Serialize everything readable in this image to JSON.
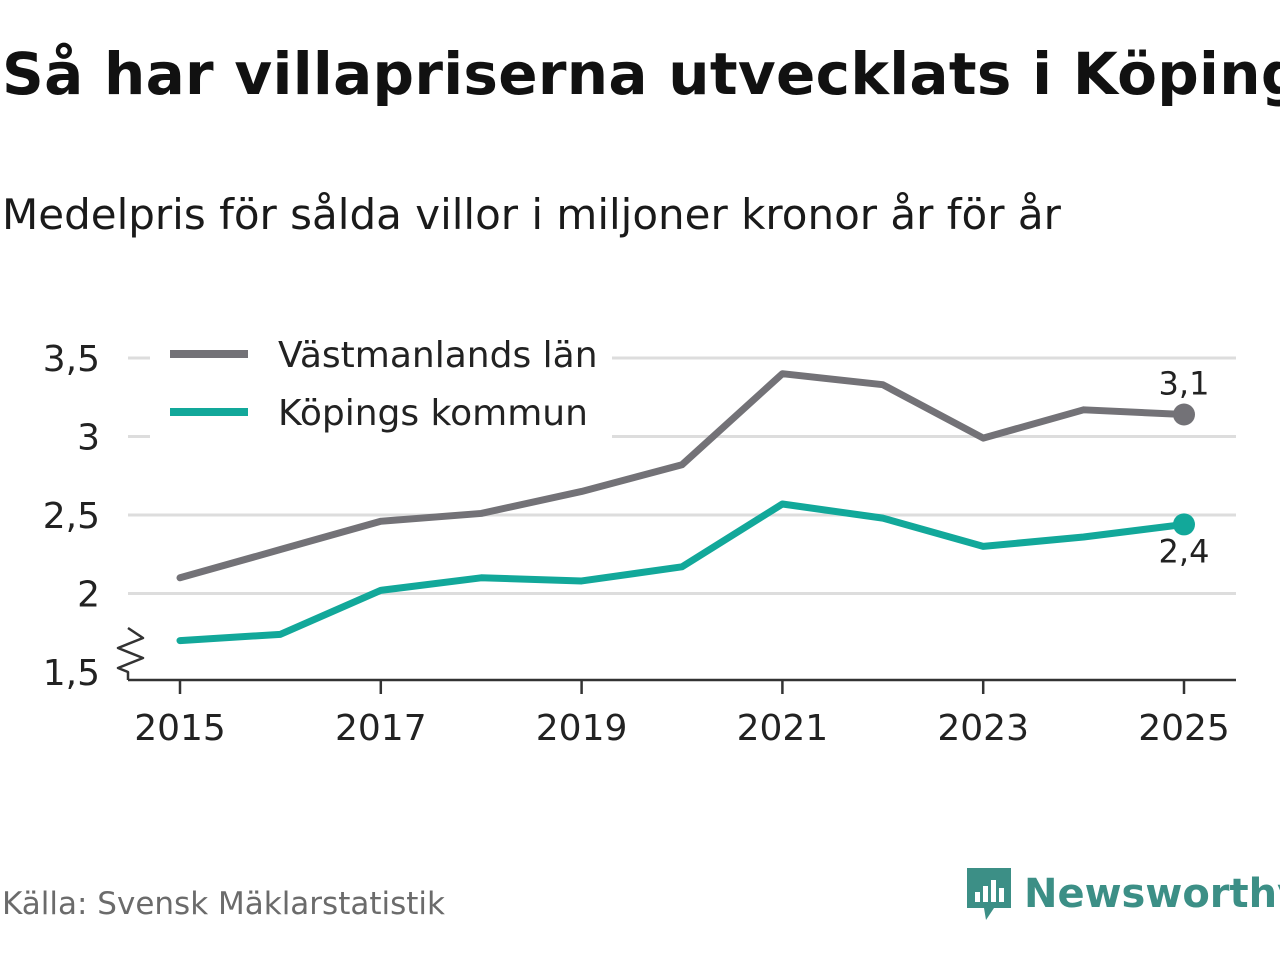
{
  "header": {
    "title": "Så har villapriserna utvecklats i Köping",
    "subtitle": "Medelpris för sålda villor i miljoner kronor år för år"
  },
  "footer": {
    "source": "Källa: Svensk Mäklarstatistik",
    "brand": "Newsworthy"
  },
  "colors": {
    "county": "#737277",
    "municipality": "#12a89a",
    "grid": "#dddddd",
    "axis": "#333333",
    "brand": "#3c8f86"
  },
  "chart_data": {
    "type": "line",
    "title": "Så har villapriserna utvecklats i Köping",
    "subtitle": "Medelpris för sålda villor i miljoner kronor år för år",
    "xlabel": "",
    "ylabel": "",
    "x": [
      2015,
      2016,
      2017,
      2018,
      2019,
      2020,
      2021,
      2022,
      2023,
      2024,
      2025
    ],
    "x_ticks": [
      "2015",
      "2017",
      "2019",
      "2021",
      "2023",
      "2025"
    ],
    "y_ticks": [
      "1,5",
      "2",
      "2,5",
      "3",
      "3,5"
    ],
    "y_tick_values": [
      1.5,
      2,
      2.5,
      3,
      3.5
    ],
    "ylim": [
      1.5,
      3.5
    ],
    "xlim": [
      2014.5,
      2025.5
    ],
    "grid": true,
    "axis_break": true,
    "legend_position": "top-left",
    "series": [
      {
        "name": "Västmanlands län",
        "key": "county",
        "values": [
          2.1,
          2.28,
          2.46,
          2.51,
          2.65,
          2.82,
          3.4,
          3.33,
          2.99,
          3.17,
          3.14
        ],
        "end_label": "3,1",
        "end_label_position": "above"
      },
      {
        "name": "Köpings kommun",
        "key": "municipality",
        "values": [
          1.7,
          1.74,
          2.02,
          2.1,
          2.08,
          2.17,
          2.57,
          2.48,
          2.3,
          2.36,
          2.44
        ],
        "end_label": "2,4",
        "end_label_position": "below"
      }
    ]
  }
}
